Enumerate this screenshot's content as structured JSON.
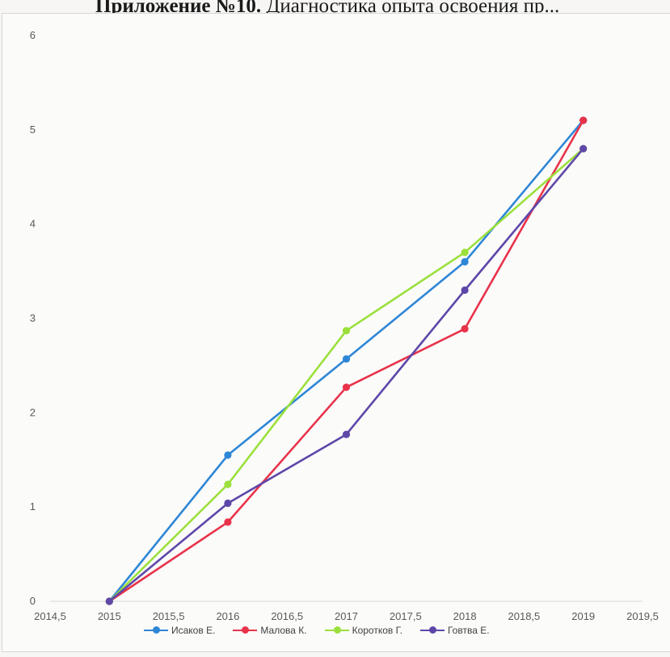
{
  "heading": {
    "bold": "Приложение №10.",
    "rest": "Диагностика опыта освоения пр..."
  },
  "chart_data": {
    "type": "scatter",
    "title": "",
    "xlabel": "",
    "ylabel": "",
    "xlim": [
      2014.5,
      2019.5
    ],
    "ylim": [
      0,
      6
    ],
    "x_ticks": [
      "2014,5",
      "2015",
      "2015,5",
      "2016",
      "2016,5",
      "2017",
      "2017,5",
      "2018",
      "2018,5",
      "2019",
      "2019,5"
    ],
    "y_ticks": [
      "0",
      "1",
      "2",
      "3",
      "4",
      "5",
      "6"
    ],
    "grid": false,
    "legend_position": "bottom",
    "x": [
      2015,
      2016,
      2017,
      2018,
      2019
    ],
    "series": [
      {
        "name": "Исаков Е.",
        "color": "#2e86d6",
        "values": [
          0,
          1.55,
          2.57,
          3.6,
          5.1
        ]
      },
      {
        "name": "Малова К.",
        "color": "#e8334a",
        "values": [
          0,
          0.84,
          2.27,
          2.89,
          5.1
        ]
      },
      {
        "name": "Коротков Г.",
        "color": "#9be03c",
        "values": [
          0,
          1.24,
          2.87,
          3.7,
          4.8
        ]
      },
      {
        "name": "Говтва Е.",
        "color": "#5e47a8",
        "values": [
          0,
          1.04,
          1.77,
          3.3,
          4.8
        ]
      }
    ]
  }
}
